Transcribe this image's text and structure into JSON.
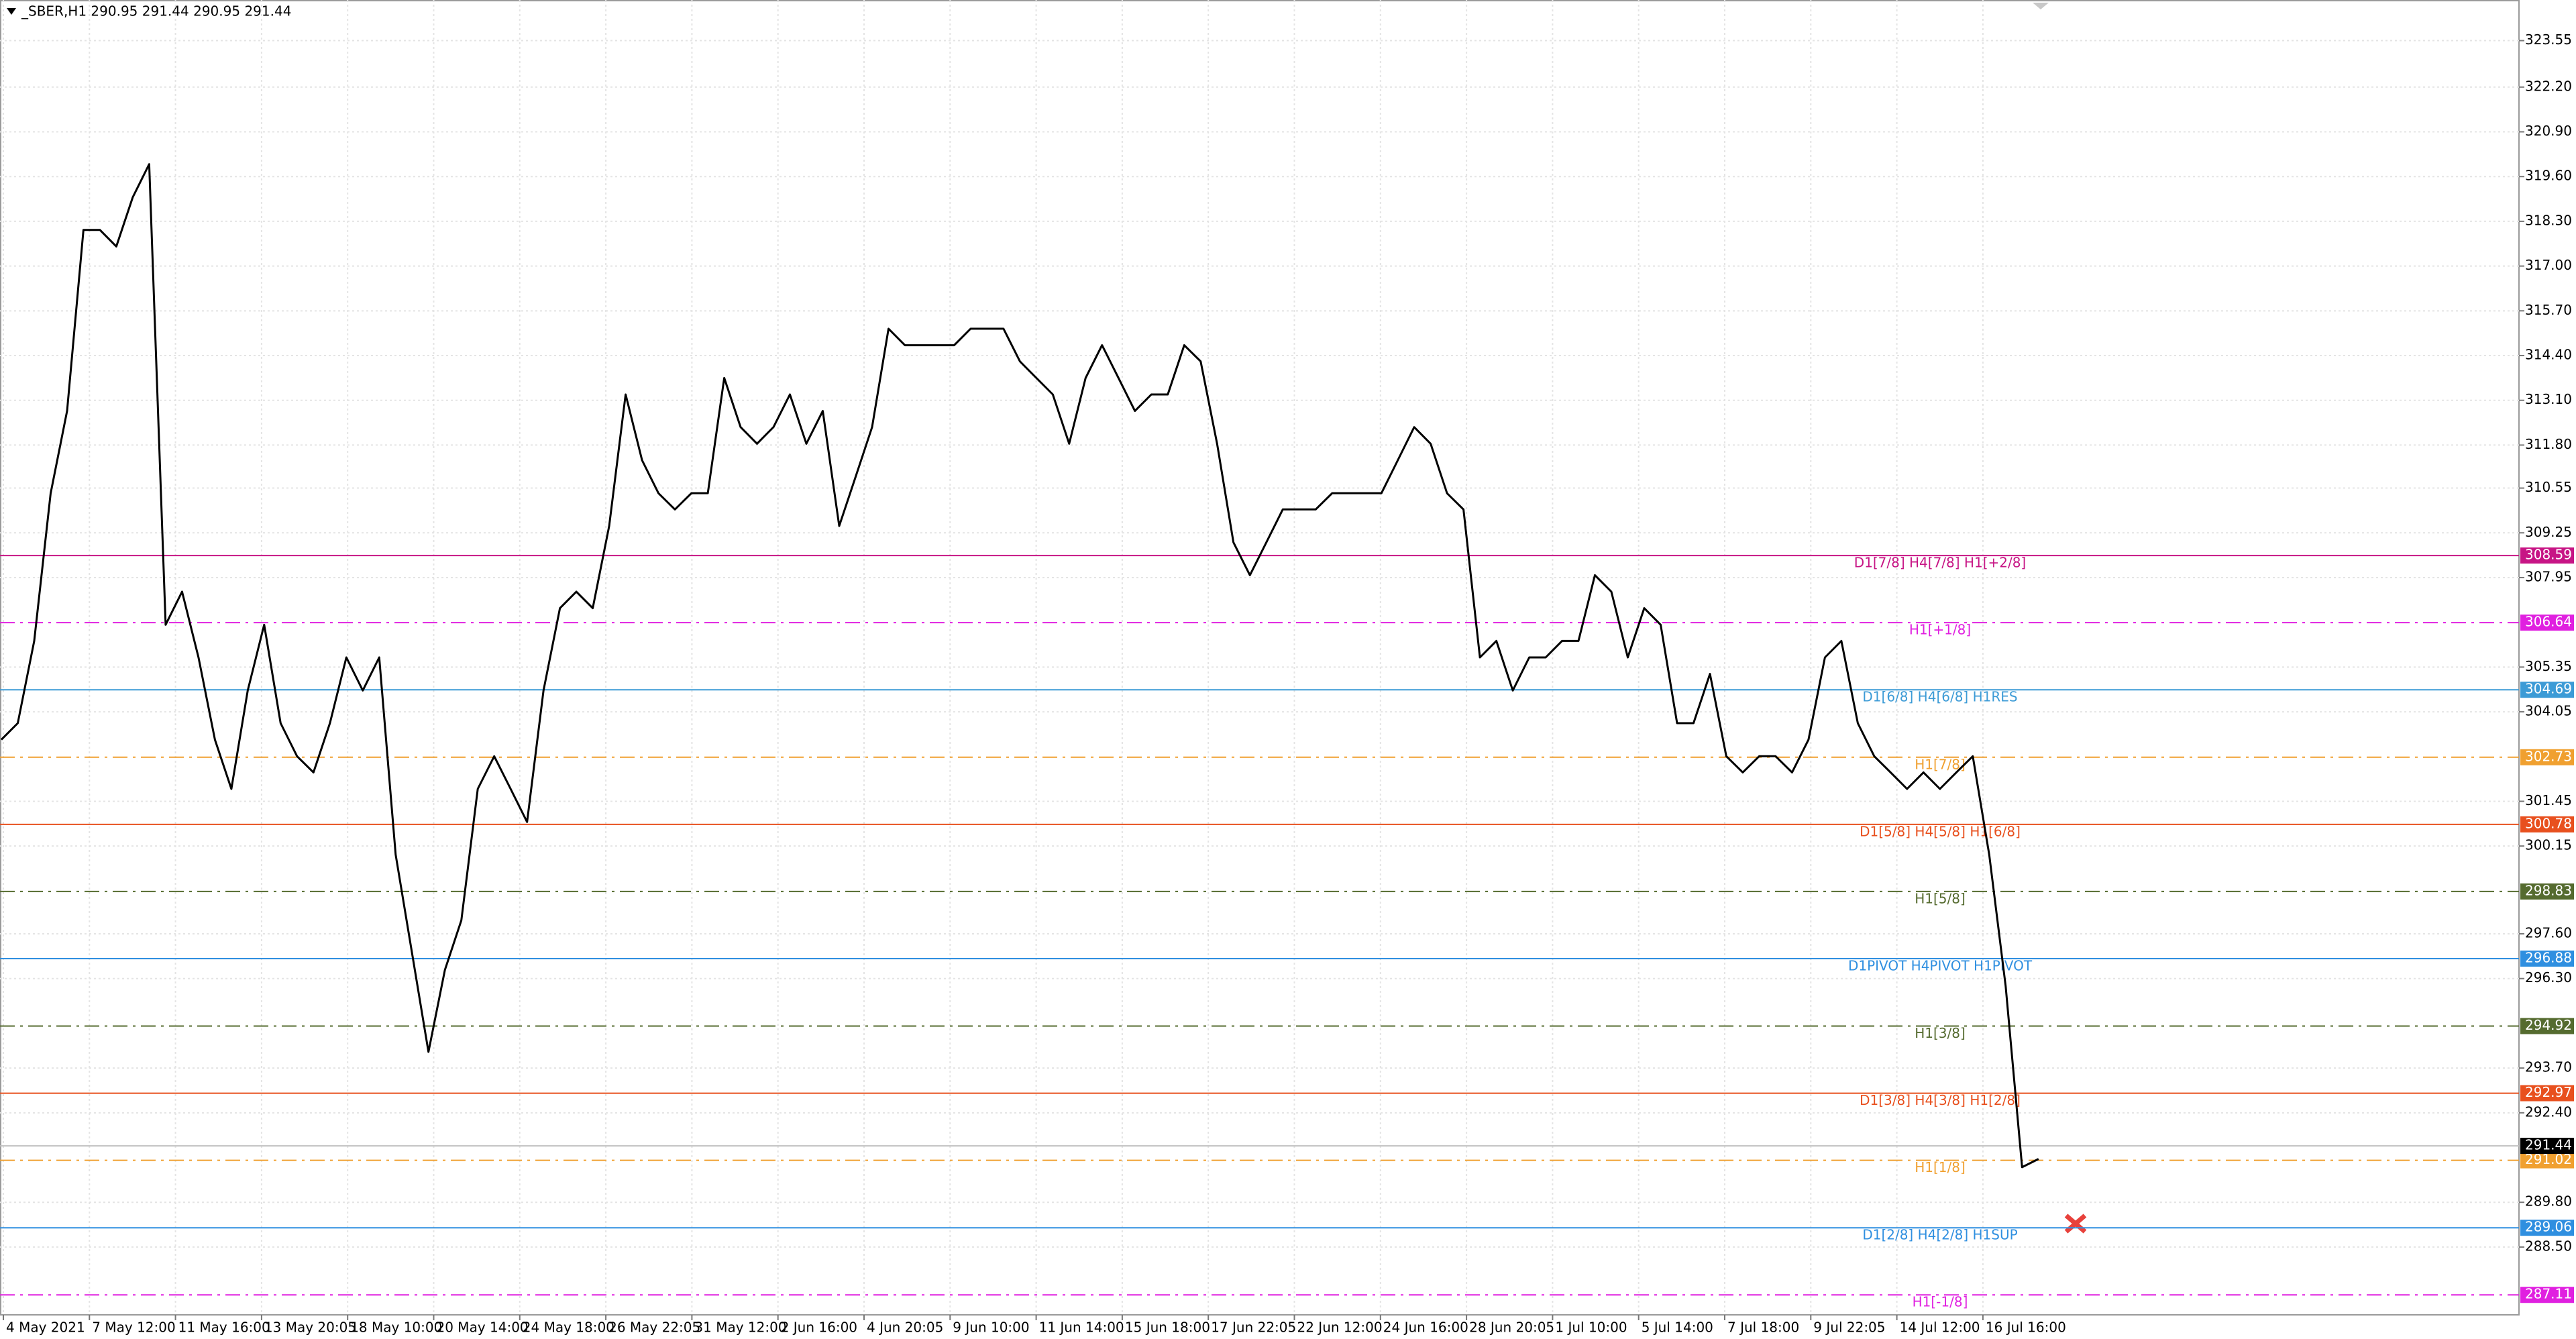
{
  "chart_data": {
    "type": "line",
    "title": "_SBER,H1 290.95 291.44 290.95 291.44",
    "ylim": [
      286.53,
      324.73
    ],
    "yticks": [
      323.55,
      {
        "value": 322.2,
        "label": "322.20"
      },
      {
        "value": 320.9,
        "label": "320.90"
      },
      {
        "value": 319.6,
        "label": "319.60"
      },
      {
        "value": 318.3,
        "label": "318.30"
      },
      {
        "value": 317,
        "label": "317.00"
      },
      {
        "value": 315.7,
        "label": "315.70"
      },
      {
        "value": 314.4,
        "label": "314.40"
      },
      {
        "value": 313.1,
        "label": "313.10"
      },
      {
        "value": 311.8,
        "label": "311.80"
      },
      310.55,
      309.25,
      307.95,
      305.35,
      304.05,
      301.45,
      300.15,
      {
        "value": 297.6,
        "label": "297.60"
      },
      {
        "value": 296.3,
        "label": "296.30"
      },
      {
        "value": 293.7,
        "label": "293.70"
      },
      {
        "value": 292.4,
        "label": "292.40"
      },
      {
        "value": 289.8,
        "label": "289.80"
      },
      {
        "value": 288.5,
        "label": "288.50"
      }
    ],
    "x_labels": [
      "4 May 2021",
      "7 May 12:00",
      "11 May 16:00",
      "13 May 20:05",
      "18 May 10:00",
      "20 May 14:00",
      "24 May 18:00",
      "26 May 22:05",
      "31 May 12:00",
      "2 Jun 16:00",
      "4 Jun 20:05",
      "9 Jun 10:00",
      "11 Jun 14:00",
      "15 Jun 18:00",
      "17 Jun 22:05",
      "22 Jun 12:00",
      "24 Jun 16:00",
      "28 Jun 20:05",
      "1 Jul 10:00",
      "5 Jul 14:00",
      "7 Jul 18:00",
      "9 Jul 22:05",
      "14 Jul 12:00",
      "16 Jul 16:00"
    ],
    "grid": true,
    "series": [
      {
        "color": "#000000",
        "values": [
          303.24,
          303.72,
          306.11,
          310.4,
          312.79,
          318.05,
          318.05,
          317.57,
          319.0,
          319.96,
          306.58,
          307.54,
          305.63,
          303.24,
          301.81,
          304.67,
          306.58,
          303.72,
          302.76,
          302.29,
          303.72,
          305.63,
          304.67,
          305.63,
          299.9,
          297.03,
          294.17,
          296.55,
          297.99,
          301.81,
          302.76,
          301.81,
          300.85,
          304.67,
          307.06,
          307.54,
          307.06,
          309.45,
          313.27,
          311.36,
          310.4,
          309.93,
          310.4,
          310.4,
          313.75,
          312.32,
          311.84,
          312.32,
          313.27,
          311.84,
          312.79,
          309.45,
          310.88,
          312.32,
          315.18,
          314.7,
          314.7,
          314.7,
          314.7,
          315.18,
          315.18,
          315.18,
          314.23,
          313.75,
          313.27,
          311.84,
          313.75,
          314.7,
          313.75,
          312.79,
          313.27,
          313.27,
          314.7,
          314.23,
          311.84,
          308.97,
          308.02,
          308.97,
          309.93,
          309.93,
          309.93,
          310.4,
          310.4,
          310.4,
          310.4,
          311.36,
          312.32,
          311.84,
          310.4,
          309.93,
          305.63,
          306.11,
          304.67,
          305.63,
          305.63,
          306.11,
          306.11,
          308.02,
          307.54,
          305.63,
          307.06,
          306.58,
          303.72,
          303.72,
          305.15,
          302.76,
          302.29,
          302.76,
          302.76,
          302.29,
          303.24,
          305.63,
          306.11,
          303.72,
          302.76,
          302.29,
          301.81,
          302.29,
          301.81,
          302.29,
          302.76,
          299.9,
          296.08,
          290.82,
          291.06
        ]
      }
    ],
    "current_price": 291.44,
    "levels": [
      {
        "value": 308.59,
        "label": "D1[7/8] H4[7/8] H1[+2/8]",
        "color": "#c71585",
        "style": "solid"
      },
      {
        "value": 306.64,
        "label": "H1[+1/8]",
        "color": "#e020e0",
        "style": "dashdot"
      },
      {
        "value": 304.69,
        "label": "D1[6/8] H4[6/8] H1RES",
        "color": "#3c9bd6",
        "style": "solid"
      },
      {
        "value": 302.73,
        "label": "H1[7/8]",
        "color": "#f0a030",
        "style": "dashdot"
      },
      {
        "value": 300.78,
        "label": "D1[5/8] H4[5/8] H1[6/8]",
        "color": "#e8501e",
        "style": "solid"
      },
      {
        "value": 298.83,
        "label": "H1[5/8]",
        "color": "#556b2f",
        "style": "dashdot"
      },
      {
        "value": 296.88,
        "label": "D1PIVOT H4PIVOT H1PIVOT",
        "color": "#2f8fe0",
        "style": "solid"
      },
      {
        "value": 294.92,
        "label": "H1[3/8]",
        "color": "#556b2f",
        "style": "dashdot"
      },
      {
        "value": 292.97,
        "label": "D1[3/8] H4[3/8] H1[2/8]",
        "color": "#e8501e",
        "style": "solid"
      },
      {
        "value": 291.02,
        "label": "H1[1/8]",
        "color": "#f0a030",
        "style": "dashdot"
      },
      {
        "value": 289.06,
        "label": "D1[2/8] H4[2/8] H1SUP",
        "color": "#2f8fe0",
        "style": "solid"
      },
      {
        "value": 287.11,
        "label": "H1[-1/8]",
        "color": "#e020e0",
        "style": "dashdot"
      }
    ]
  }
}
